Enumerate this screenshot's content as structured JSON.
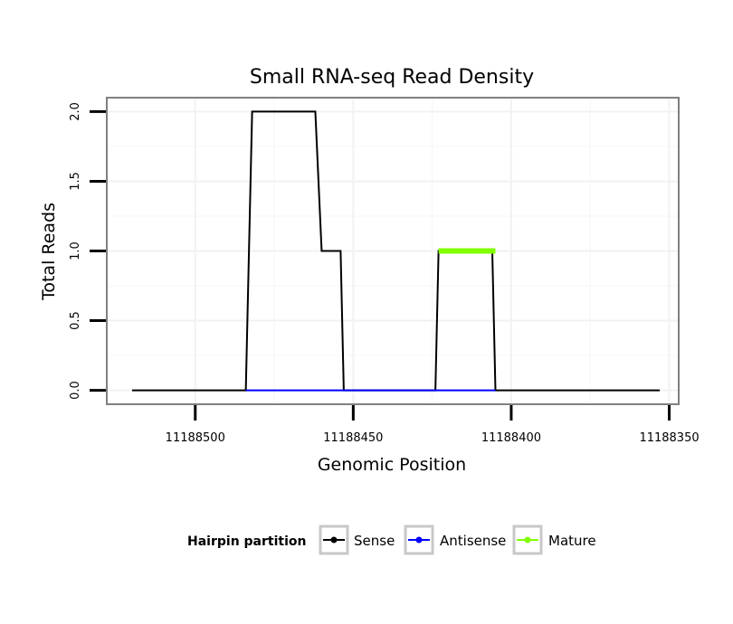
{
  "chart_data": {
    "type": "line",
    "title": "Small RNA-seq Read Density",
    "xlabel": "Genomic Position",
    "ylabel": "Total Reads",
    "xlim": [
      11188528,
      11188347
    ],
    "x_reversed": true,
    "ylim": [
      -0.1,
      2.1
    ],
    "x_ticks": [
      11188500,
      11188450,
      11188400,
      11188350
    ],
    "x_tick_labels": [
      "11188500",
      "11188450",
      "11188400",
      "11188350"
    ],
    "y_ticks": [
      0,
      0.5,
      1,
      1.5,
      2
    ],
    "y_tick_labels": [
      "0.0",
      "0.5",
      "1.0",
      "1.5",
      "2.0"
    ],
    "grid": true,
    "legend": {
      "title": "Hairpin partition",
      "position": "bottom",
      "entries": [
        "Sense",
        "Antisense",
        "Mature"
      ]
    },
    "series": [
      {
        "name": "Sense",
        "color": "#000000",
        "x": [
          11188520,
          11188484,
          11188482,
          11188462,
          11188460,
          11188456,
          11188454,
          11188453,
          11188424,
          11188423,
          11188406,
          11188405,
          11188353
        ],
        "values": [
          0,
          0,
          2,
          2,
          1,
          1,
          1,
          0,
          0,
          1,
          1,
          0,
          0
        ]
      },
      {
        "name": "Antisense",
        "color": "#0000ff",
        "x": [
          11188484,
          11188453,
          11188424,
          11188405
        ],
        "values": [
          0,
          0,
          0,
          0
        ]
      },
      {
        "name": "Mature",
        "color": "#80ff00",
        "x": [
          11188423,
          11188405
        ],
        "values": [
          1,
          1
        ]
      }
    ]
  }
}
